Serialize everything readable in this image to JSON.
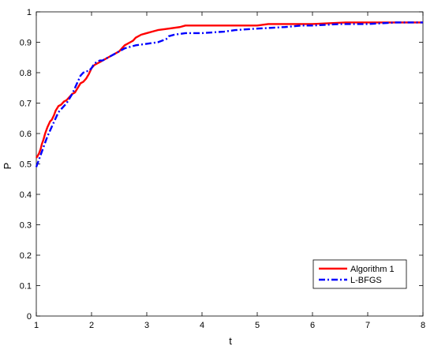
{
  "chart_data": {
    "type": "line",
    "title": "",
    "xlabel": "t",
    "ylabel": "P",
    "xlim": [
      1,
      8
    ],
    "ylim": [
      0,
      1
    ],
    "xticks": [
      1,
      2,
      3,
      4,
      5,
      6,
      7,
      8
    ],
    "yticks": [
      0,
      0.1,
      0.2,
      0.3,
      0.4,
      0.5,
      0.6,
      0.7,
      0.8,
      0.9,
      1
    ],
    "grid": false,
    "legend_position": "bottom-right",
    "series": [
      {
        "name": "Algorithm 1",
        "color": "#ff0000",
        "style": "solid",
        "x": [
          1.0,
          1.02,
          1.05,
          1.08,
          1.1,
          1.13,
          1.16,
          1.2,
          1.25,
          1.28,
          1.32,
          1.35,
          1.4,
          1.45,
          1.5,
          1.55,
          1.6,
          1.65,
          1.7,
          1.75,
          1.8,
          1.85,
          1.9,
          1.95,
          2.0,
          2.05,
          2.1,
          2.15,
          2.2,
          2.25,
          2.3,
          2.4,
          2.5,
          2.55,
          2.6,
          2.65,
          2.7,
          2.75,
          2.8,
          2.9,
          3.0,
          3.1,
          3.2,
          3.4,
          3.6,
          3.7,
          4.0,
          4.5,
          5.0,
          5.2,
          6.0,
          6.6,
          7.0,
          8.0
        ],
        "y": [
          0.52,
          0.525,
          0.535,
          0.55,
          0.565,
          0.58,
          0.6,
          0.62,
          0.64,
          0.645,
          0.66,
          0.675,
          0.69,
          0.695,
          0.705,
          0.71,
          0.72,
          0.73,
          0.735,
          0.75,
          0.765,
          0.77,
          0.78,
          0.795,
          0.815,
          0.825,
          0.83,
          0.835,
          0.84,
          0.845,
          0.85,
          0.86,
          0.87,
          0.88,
          0.89,
          0.895,
          0.9,
          0.905,
          0.915,
          0.925,
          0.93,
          0.935,
          0.94,
          0.945,
          0.95,
          0.955,
          0.955,
          0.955,
          0.955,
          0.96,
          0.96,
          0.965,
          0.965,
          0.965
        ]
      },
      {
        "name": "L-BFGS",
        "color": "#0000ff",
        "style": "dashdot",
        "x": [
          1.0,
          1.02,
          1.05,
          1.08,
          1.12,
          1.16,
          1.2,
          1.25,
          1.3,
          1.35,
          1.4,
          1.45,
          1.5,
          1.55,
          1.6,
          1.65,
          1.7,
          1.75,
          1.8,
          1.85,
          1.9,
          1.95,
          2.0,
          2.05,
          2.1,
          2.15,
          2.2,
          2.3,
          2.4,
          2.5,
          2.6,
          2.7,
          2.8,
          3.0,
          3.2,
          3.35,
          3.4,
          3.5,
          3.7,
          4.0,
          4.4,
          4.6,
          5.0,
          5.5,
          5.8,
          6.0,
          6.5,
          7.0,
          7.5,
          8.0
        ],
        "y": [
          0.49,
          0.5,
          0.515,
          0.53,
          0.55,
          0.57,
          0.59,
          0.61,
          0.63,
          0.65,
          0.67,
          0.68,
          0.69,
          0.7,
          0.715,
          0.73,
          0.75,
          0.77,
          0.79,
          0.8,
          0.805,
          0.805,
          0.815,
          0.83,
          0.835,
          0.84,
          0.84,
          0.85,
          0.86,
          0.87,
          0.88,
          0.885,
          0.89,
          0.895,
          0.9,
          0.91,
          0.92,
          0.925,
          0.93,
          0.93,
          0.935,
          0.94,
          0.945,
          0.95,
          0.955,
          0.955,
          0.96,
          0.96,
          0.965,
          0.965
        ]
      }
    ]
  }
}
